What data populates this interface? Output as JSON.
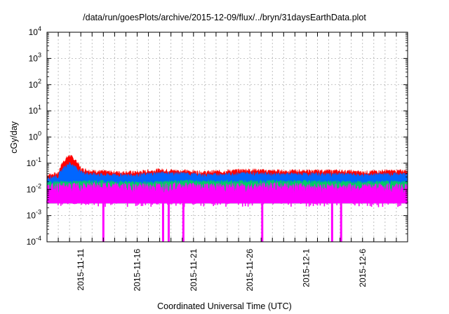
{
  "chart_data": {
    "type": "area",
    "title": "/data/run/goesPlots/archive/2015-12-09/flux/../bryn/31daysEarthData.plot",
    "xlabel": "Coordinated Universal Time (UTC)",
    "ylabel": "cGy/day",
    "yscale": "log",
    "ylim": [
      0.0001,
      10000
    ],
    "xlim": [
      "2015-11-08",
      "2015-12-10"
    ],
    "grid": true,
    "y_ticks": [
      {
        "mant": "10",
        "exp": "-4",
        "value": 0.0001
      },
      {
        "mant": "10",
        "exp": "-3",
        "value": 0.001
      },
      {
        "mant": "10",
        "exp": "-2",
        "value": 0.01
      },
      {
        "mant": "10",
        "exp": "-1",
        "value": 0.1
      },
      {
        "mant": "10",
        "exp": "0",
        "value": 1
      },
      {
        "mant": "10",
        "exp": "1",
        "value": 10
      },
      {
        "mant": "10",
        "exp": "2",
        "value": 100
      },
      {
        "mant": "10",
        "exp": "3",
        "value": 1000
      },
      {
        "mant": "10",
        "exp": "4",
        "value": 10000
      }
    ],
    "x_ticks": [
      "2015-11-11",
      "2015-11-16",
      "2015-11-21",
      "2015-11-26",
      "2015-12-1",
      "2015-12-6"
    ],
    "series": [
      {
        "color": "#ff0000",
        "x": [
          "2015-11-08",
          "2015-11-09",
          "2015-11-10",
          "2015-11-11",
          "2015-11-12",
          "2015-11-14",
          "2015-11-16",
          "2015-11-18",
          "2015-11-20",
          "2015-11-22",
          "2015-11-24",
          "2015-11-26",
          "2015-11-28",
          "2015-11-30",
          "2015-12-02",
          "2015-12-04",
          "2015-12-06",
          "2015-12-08",
          "2015-12-10"
        ],
        "y": [
          0.035,
          0.04,
          0.2,
          0.06,
          0.05,
          0.045,
          0.045,
          0.055,
          0.05,
          0.045,
          0.05,
          0.055,
          0.05,
          0.05,
          0.05,
          0.05,
          0.045,
          0.05,
          0.05
        ]
      },
      {
        "color": "#0066ff",
        "x": [
          "2015-11-08",
          "2015-11-09",
          "2015-11-10",
          "2015-11-11",
          "2015-11-12",
          "2015-11-14",
          "2015-11-16",
          "2015-11-18",
          "2015-11-20",
          "2015-11-22",
          "2015-11-24",
          "2015-11-26",
          "2015-11-28",
          "2015-11-30",
          "2015-12-02",
          "2015-12-04",
          "2015-12-06",
          "2015-12-08",
          "2015-12-10"
        ],
        "y": [
          0.028,
          0.032,
          0.1,
          0.045,
          0.038,
          0.035,
          0.035,
          0.042,
          0.04,
          0.035,
          0.038,
          0.042,
          0.038,
          0.038,
          0.038,
          0.038,
          0.035,
          0.038,
          0.038
        ]
      },
      {
        "color": "#00cc66",
        "x": [
          "2015-11-08",
          "2015-11-12",
          "2015-11-16",
          "2015-11-20",
          "2015-11-24",
          "2015-11-28",
          "2015-12-02",
          "2015-12-06",
          "2015-12-10"
        ],
        "y": [
          0.018,
          0.02,
          0.018,
          0.02,
          0.02,
          0.02,
          0.02,
          0.018,
          0.02
        ]
      },
      {
        "color": "#ff00ff",
        "x": [
          "2015-11-08",
          "2015-11-12",
          "2015-11-16",
          "2015-11-20",
          "2015-11-24",
          "2015-11-28",
          "2015-12-02",
          "2015-12-06",
          "2015-12-10"
        ],
        "y": [
          0.012,
          0.013,
          0.012,
          0.013,
          0.012,
          0.013,
          0.012,
          0.012,
          0.012
        ],
        "floor": 0.003,
        "dips": [
          {
            "x": "2015-11-13",
            "y": 0.0001
          },
          {
            "x": "2015-11-18.3",
            "y": 0.0001
          },
          {
            "x": "2015-11-18.8",
            "y": 0.0001
          },
          {
            "x": "2015-11-20.1",
            "y": 0.0001
          },
          {
            "x": "2015-11-27.1",
            "y": 0.0001
          },
          {
            "x": "2015-12-03.3",
            "y": 0.0001
          },
          {
            "x": "2015-12-04.1",
            "y": 0.0001
          }
        ]
      }
    ]
  }
}
